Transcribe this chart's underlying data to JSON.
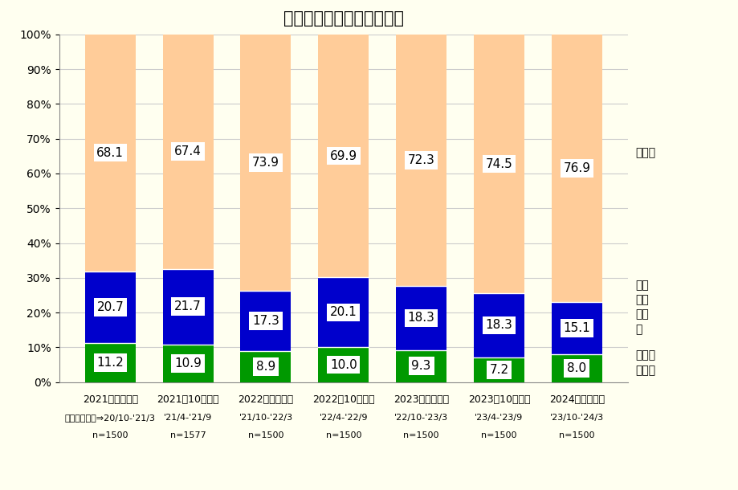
{
  "title": "利用した金利タイプの割合",
  "categories": [
    "2021年４月調査",
    "2021年10月調査",
    "2022年４月調査",
    "2022年10月調査",
    "2023年４月調査",
    "2023年10月調査",
    "2024年４月調査"
  ],
  "sub_labels_line1": [
    "調査対象期間⇒20/10-'21/3",
    "'21/4-'21/9",
    "'21/10-'22/3",
    "'22/4-'22/9",
    "'22/10-'23/3",
    "'23/4-'23/9",
    "'23/10-'24/3"
  ],
  "sub_labels_line2": [
    "n=1500",
    "n=1577",
    "n=1500",
    "n=1500",
    "n=1500",
    "n=1500",
    "n=1500"
  ],
  "fixed_values": [
    11.2,
    10.9,
    8.9,
    10.0,
    9.3,
    7.2,
    8.0
  ],
  "select_values": [
    20.7,
    21.7,
    17.3,
    20.1,
    18.3,
    18.3,
    15.1
  ],
  "variable_values": [
    68.1,
    67.4,
    73.9,
    69.9,
    72.3,
    74.5,
    76.9
  ],
  "fixed_color": "#009900",
  "select_color": "#0000cc",
  "variable_color": "#ffcc99",
  "bar_width": 0.65,
  "ylim": [
    0,
    100
  ],
  "yticks": [
    0,
    10,
    20,
    30,
    40,
    50,
    60,
    70,
    80,
    90,
    100
  ],
  "background_color": "#fffff0",
  "grid_color": "#cccccc",
  "title_fontsize": 15,
  "tick_fontsize": 10,
  "annotation_fontsize": 11,
  "legend_variable": "変動型",
  "legend_select": "固定\n期間\n選択\n型",
  "legend_fixed": "全期間\n固定型"
}
